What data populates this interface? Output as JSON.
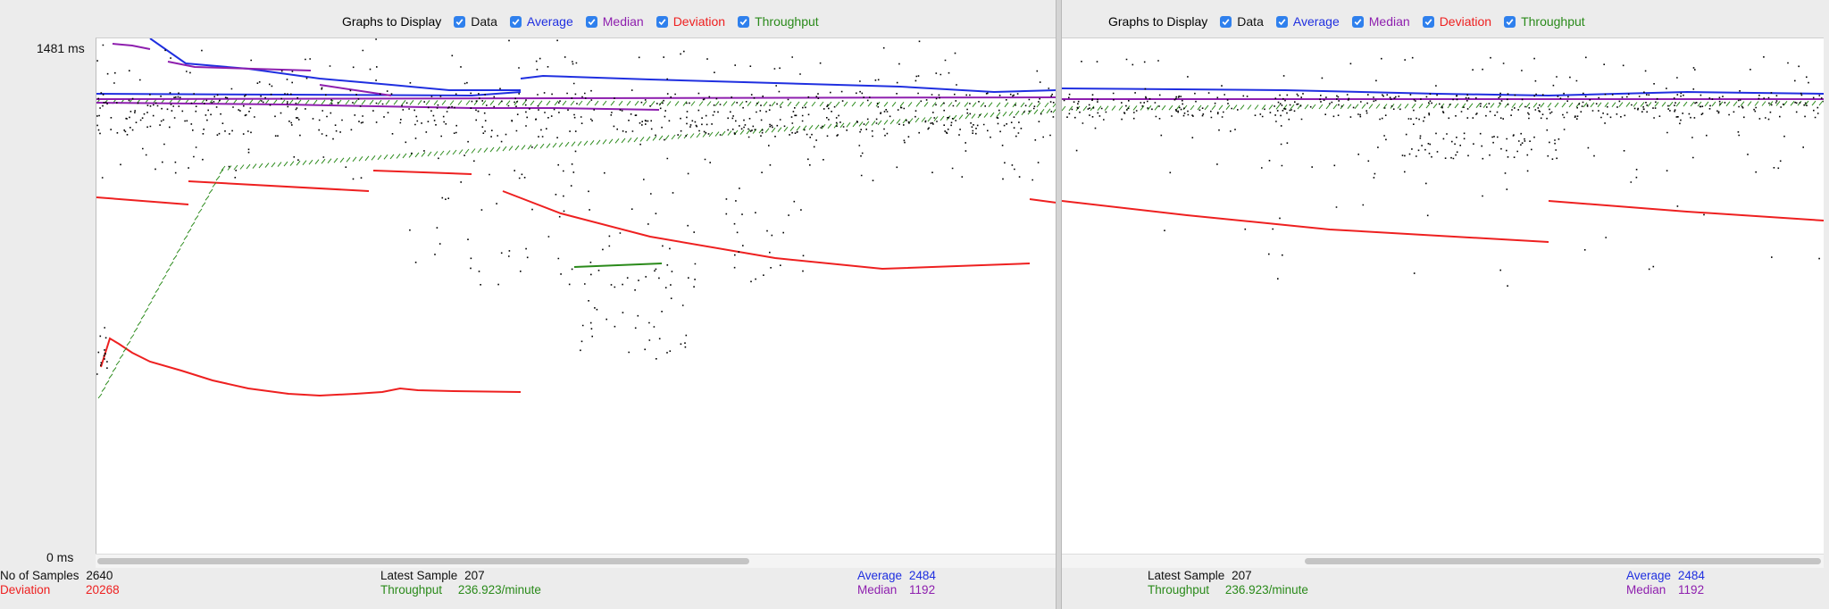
{
  "colors": {
    "data": "#000000",
    "average": "#1f2fe0",
    "median": "#8e1fae",
    "deviation": "#ee2020",
    "throughput": "#2a8a1a"
  },
  "left": {
    "toolbar": {
      "title": "Graphs to Display",
      "data_label": "Data",
      "average_label": "Average",
      "median_label": "Median",
      "deviation_label": "Deviation",
      "throughput_label": "Throughput"
    },
    "y_axis": {
      "max_label": "1481  ms",
      "min_label": "0  ms"
    },
    "stats": {
      "samples_label": "No of Samples",
      "samples_value": "2640",
      "deviation_label": "Deviation",
      "deviation_value": "20268",
      "latest_label": "Latest Sample",
      "latest_value": "207",
      "throughput_label": "Throughput",
      "throughput_value": "236.923/minute",
      "average_label": "Average",
      "average_value": "2484",
      "median_label": "Median",
      "median_value": "1192"
    }
  },
  "right": {
    "toolbar": {
      "title": "Graphs to Display",
      "data_label": "Data",
      "average_label": "Average",
      "median_label": "Median",
      "deviation_label": "Deviation",
      "throughput_label": "Throughput"
    },
    "stats": {
      "latest_label": "Latest Sample",
      "latest_value": "207",
      "throughput_label": "Throughput",
      "throughput_value": "236.923/minute",
      "average_label": "Average",
      "average_value": "2484",
      "median_label": "Median",
      "median_value": "1192"
    }
  }
}
